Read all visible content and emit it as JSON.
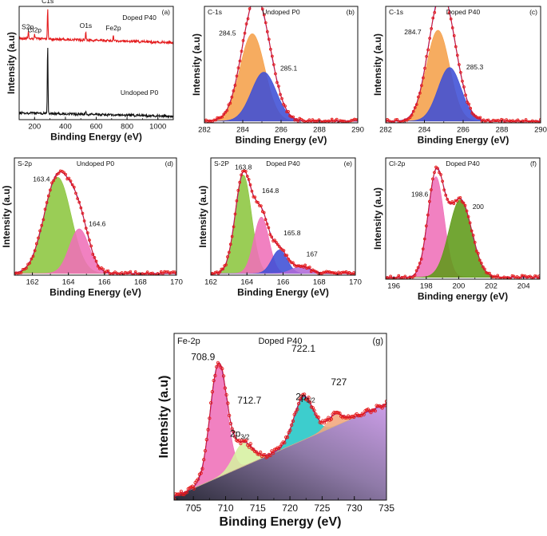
{
  "figure": {
    "peak_colors": {
      "orange": "#f5a04a",
      "blue": "#3d4fd6",
      "green": "#8cc63f",
      "pink": "#ef6fb8",
      "violet": "#b06ad8",
      "darkgreen": "#5f9a18",
      "lightgreen": "#d6f0a0",
      "cyan": "#22c6c6",
      "salmon": "#f2a67c",
      "lavender": "#cc9ee8"
    },
    "accent_color": "#e41a1c"
  },
  "chart_data": [
    {
      "id": "a",
      "type": "line",
      "panel_label": "(a)",
      "xlabel": "Binding Energy (eV)",
      "ylabel": "Intensity (a.u)",
      "xlim": [
        100,
        1100
      ],
      "ylim": [
        0,
        100
      ],
      "xticks": [
        200,
        400,
        600,
        800,
        1000
      ],
      "series": [
        {
          "name": "Doped P40",
          "color": "#e41a1c",
          "baseline": 72,
          "peaks": [
            [
              285,
              100
            ],
            [
              160,
              78
            ],
            [
              200,
              76
            ],
            [
              532,
              79
            ],
            [
              711,
              76
            ]
          ]
        },
        {
          "name": "Undoped P0",
          "color": "#111111",
          "baseline": 6,
          "peaks": [
            [
              285,
              68
            ],
            [
              532,
              8
            ]
          ]
        }
      ],
      "annotations": [
        {
          "text": "C1s",
          "x": 285,
          "y": 103
        },
        {
          "text": "S2p",
          "x": 155,
          "y": 80
        },
        {
          "text": "Cl2p",
          "x": 200,
          "y": 77
        },
        {
          "text": "O1s",
          "x": 532,
          "y": 81
        },
        {
          "text": "Fe2p",
          "x": 711,
          "y": 79
        },
        {
          "text": "Doped P40",
          "x": 880,
          "y": 88
        },
        {
          "text": "Undoped P0",
          "x": 880,
          "y": 22
        }
      ]
    },
    {
      "id": "b",
      "type": "area",
      "panel_label": "(b)",
      "title_left": "C-1s",
      "title_center": "Undoped P0",
      "xlabel": "Binding Energy (eV)",
      "ylabel": "Intensity (a.u)",
      "xlim": [
        282,
        290
      ],
      "ylim": [
        0,
        100
      ],
      "xticks": [
        282,
        284,
        286,
        288,
        290
      ],
      "components": [
        {
          "label": "284.5",
          "center": 284.5,
          "height": 75,
          "width": 0.65,
          "color": "orange"
        },
        {
          "label": "285.1",
          "center": 285.1,
          "height": 42,
          "width": 0.65,
          "color": "blue"
        }
      ],
      "label_positions": [
        {
          "x": 283.2,
          "y": 75
        },
        {
          "x": 286.4,
          "y": 45
        }
      ]
    },
    {
      "id": "c",
      "type": "area",
      "panel_label": "(c)",
      "title_left": "C-1s",
      "title_center": "Doped P40",
      "xlabel": "Binding Energy (eV)",
      "ylabel": "Intensity (a.u)",
      "xlim": [
        282,
        290
      ],
      "ylim": [
        0,
        100
      ],
      "xticks": [
        282,
        284,
        286,
        288,
        290
      ],
      "components": [
        {
          "label": "284.7",
          "center": 284.7,
          "height": 78,
          "width": 0.6,
          "color": "orange"
        },
        {
          "label": "285.3",
          "center": 285.3,
          "height": 46,
          "width": 0.6,
          "color": "blue"
        }
      ],
      "label_positions": [
        {
          "x": 283.4,
          "y": 76
        },
        {
          "x": 286.6,
          "y": 46
        }
      ]
    },
    {
      "id": "d",
      "type": "area",
      "panel_label": "(d)",
      "title_left": "S-2p",
      "title_center": "Undoped P0",
      "xlabel": "Binding Energy (eV)",
      "ylabel": "Intensity (a.u)",
      "xlim": [
        161,
        170
      ],
      "ylim": [
        0,
        100
      ],
      "xticks": [
        162,
        164,
        166,
        168,
        170
      ],
      "components": [
        {
          "label": "163.4",
          "center": 163.4,
          "height": 82,
          "width": 0.75,
          "color": "green"
        },
        {
          "label": "164.6",
          "center": 164.6,
          "height": 38,
          "width": 0.55,
          "color": "pink"
        }
      ],
      "label_positions": [
        {
          "x": 162.5,
          "y": 80
        },
        {
          "x": 165.6,
          "y": 42
        }
      ]
    },
    {
      "id": "e",
      "type": "area",
      "panel_label": "(e)",
      "title_left": "S-2P",
      "title_center": "Doped P40",
      "xlabel": "Binding Energy (eV)",
      "ylabel": "Intensity (a.u)",
      "xlim": [
        162,
        170
      ],
      "ylim": [
        0,
        100
      ],
      "xticks": [
        162,
        164,
        166,
        168,
        170
      ],
      "components": [
        {
          "label": "163.8",
          "center": 163.8,
          "height": 84,
          "width": 0.45,
          "color": "green"
        },
        {
          "label": "164.8",
          "center": 164.8,
          "height": 48,
          "width": 0.42,
          "color": "pink"
        },
        {
          "label": "165.8",
          "center": 165.8,
          "height": 20,
          "width": 0.42,
          "color": "blue"
        },
        {
          "label": "167",
          "center": 167.0,
          "height": 6,
          "width": 0.5,
          "color": "violet"
        }
      ],
      "label_positions": [
        {
          "x": 163.8,
          "y": 90
        },
        {
          "x": 165.3,
          "y": 70
        },
        {
          "x": 166.5,
          "y": 34
        },
        {
          "x": 167.6,
          "y": 16
        }
      ]
    },
    {
      "id": "f",
      "type": "area",
      "panel_label": "(f)",
      "title_left": "Cl-2p",
      "title_center": "Doped P40",
      "xlabel": "Binding energy (eV)",
      "ylabel": "Intensity (a.u)",
      "xlim": [
        195.5,
        205
      ],
      "ylim": [
        0,
        100
      ],
      "xticks": [
        196,
        198,
        200,
        202,
        204
      ],
      "components": [
        {
          "label": "198.6",
          "center": 198.6,
          "height": 83,
          "width": 0.5,
          "color": "pink"
        },
        {
          "label": "200",
          "center": 200.1,
          "height": 64,
          "width": 0.7,
          "color": "darkgreen"
        }
      ],
      "label_positions": [
        {
          "x": 197.6,
          "y": 68
        },
        {
          "x": 201.2,
          "y": 58
        }
      ]
    },
    {
      "id": "g",
      "type": "area",
      "panel_label": "(g)",
      "title_left": "Fe-2p",
      "title_center": "Doped P40",
      "xlabel": "Binding Energy (eV)",
      "ylabel": "Intensity (a.u)",
      "xlim": [
        702,
        735
      ],
      "ylim": [
        0,
        100
      ],
      "xticks": [
        705,
        710,
        715,
        720,
        725,
        730,
        735
      ],
      "background": {
        "start": 2,
        "end": 58,
        "color": "lavender"
      },
      "components": [
        {
          "label": "708.9",
          "center": 708.9,
          "height": 68,
          "width": 1.3,
          "color": "pink"
        },
        {
          "label": "712.7",
          "center": 712.7,
          "height": 14,
          "width": 1.5,
          "color": "lightgreen"
        },
        {
          "label": "722.1",
          "center": 722.1,
          "height": 26,
          "width": 1.5,
          "color": "cyan"
        },
        {
          "label": "727",
          "center": 727.0,
          "height": 7,
          "width": 1.2,
          "color": "salmon"
        }
      ],
      "label_positions": [
        {
          "x": 706.5,
          "y": 84
        },
        {
          "x": 713.7,
          "y": 58
        },
        {
          "x": 722.1,
          "y": 89
        },
        {
          "x": 727.6,
          "y": 69
        }
      ],
      "inner_labels": [
        {
          "main": "2p",
          "sub": "3/2",
          "x": 712.2,
          "y": 38
        },
        {
          "main": "2p",
          "sub": "1/2",
          "x": 722.4,
          "y": 60
        }
      ]
    }
  ]
}
